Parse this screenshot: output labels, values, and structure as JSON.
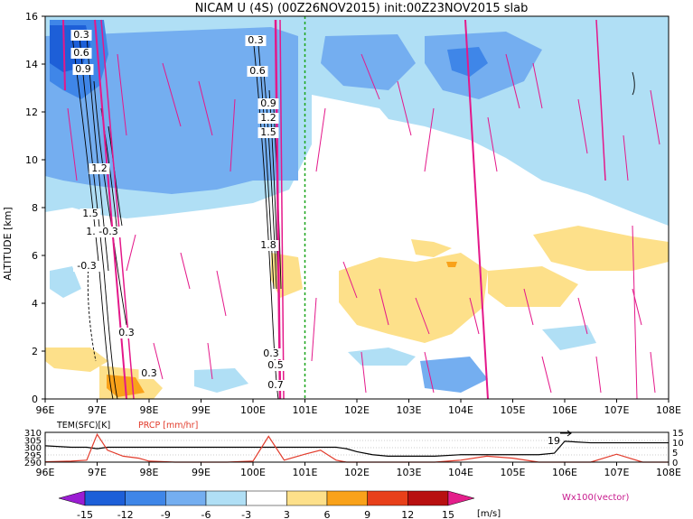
{
  "title": "NICAM U (4S) (00Z26NOV2015) init:00Z23NOV2015 slab",
  "chart_data": [
    {
      "type": "heatmap",
      "title": "NICAM U (4S) (00Z26NOV2015) init:00Z23NOV2015 slab",
      "ylabel": "ALTITUDE [km]",
      "xlim": [
        96,
        108
      ],
      "ylim": [
        0,
        16
      ],
      "x_ticks": [
        "96E",
        "97E",
        "98E",
        "99E",
        "100E",
        "101E",
        "102E",
        "103E",
        "104E",
        "105E",
        "106E",
        "107E",
        "108E"
      ],
      "y_ticks": [
        "0",
        "2",
        "4",
        "6",
        "8",
        "10",
        "12",
        "14",
        "16"
      ],
      "contour_labels": [
        "0.3",
        "0.6",
        "0.9",
        "1.2",
        "1.5",
        "1.8",
        "0.3",
        "0.6",
        "0.9",
        "1.2",
        "1.5",
        "1.8",
        "-0.3",
        "-0.3",
        "0.3",
        "0.3",
        "0.3",
        "0.5",
        "0.7"
      ],
      "marker_line_x": 101,
      "colorbar": {
        "ticks": [
          "-15",
          "-12",
          "-9",
          "-6",
          "-3",
          "3",
          "6",
          "9",
          "12",
          "15"
        ],
        "unit": "[m/s]",
        "colors": [
          "#9b1dd3",
          "#1d5fd8",
          "#3f86e8",
          "#74aef0",
          "#b0dff5",
          "#ffffff",
          "#fde08a",
          "#f9a21a",
          "#e8401a",
          "#b81010",
          "#e41f8b"
        ]
      },
      "vector_label": "Wx100(vector)",
      "vector_color": "#e4188a"
    },
    {
      "type": "line",
      "series_labels": [
        "TEM(SFC)[K]",
        "PRCP [mm/hr]"
      ],
      "x": [
        96.0,
        96.5,
        96.8,
        97.0,
        97.2,
        97.5,
        97.8,
        98.0,
        98.5,
        99.0,
        99.5,
        100.0,
        100.3,
        100.6,
        101.0,
        101.3,
        101.6,
        101.8,
        102.0,
        102.3,
        102.6,
        103.0,
        103.5,
        104.0,
        104.5,
        105.0,
        105.5,
        105.8,
        106.0,
        106.5,
        107.0,
        107.5,
        108.0
      ],
      "series": [
        {
          "values": [
            301,
            300,
            300,
            299,
            300,
            300,
            300,
            300,
            300,
            300,
            300,
            300,
            300,
            300,
            300,
            300,
            300,
            299,
            297,
            295,
            294,
            294,
            294,
            295,
            295,
            295,
            295,
            296,
            304,
            303,
            303,
            303,
            303
          ]
        },
        {
          "values": [
            0.2,
            0.5,
            1,
            14,
            6,
            3,
            2,
            0.5,
            0,
            0,
            0,
            0.5,
            13,
            1,
            4,
            6,
            1,
            0,
            0,
            0,
            0,
            0,
            0,
            1,
            3,
            2,
            0,
            0,
            0,
            0,
            4,
            0,
            0
          ]
        }
      ],
      "left_ticks": [
        "290",
        "295",
        "300",
        "305",
        "310"
      ],
      "right_ticks": [
        "0",
        "5",
        "10",
        "15"
      ],
      "right_value_label": "19"
    }
  ]
}
